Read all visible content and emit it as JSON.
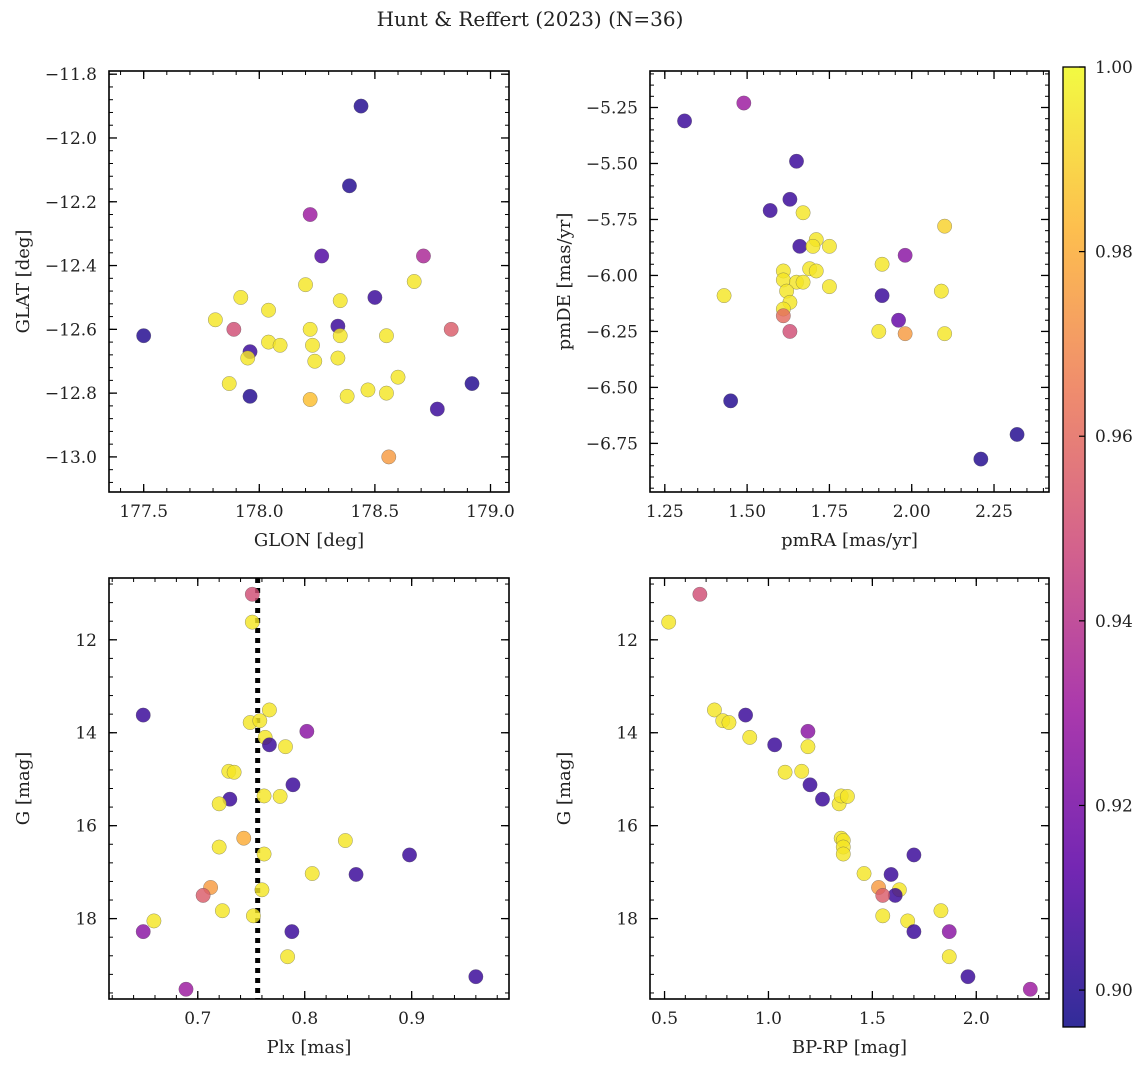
{
  "title": "Hunt & Reffert (2023) (N=36)",
  "colorbar": {
    "range": [
      0.896,
      1.0
    ],
    "ticks": [
      0.9,
      0.92,
      0.94,
      0.96,
      0.98,
      1.0
    ],
    "tick_labels": [
      "0.90",
      "0.92",
      "0.94",
      "0.96",
      "0.98",
      "1.00"
    ],
    "colormap": [
      "#0d0887",
      "#5c01a6",
      "#9c179e",
      "#cc4778",
      "#ed7953",
      "#fdb42f",
      "#f0f921"
    ]
  },
  "chart_data": [
    {
      "type": "scatter",
      "name": "sky-position",
      "xlabel": "GLON [deg]",
      "ylabel": "GLAT [deg]",
      "xlim": [
        177.35,
        179.08
      ],
      "ylim": [
        -13.11,
        -11.79
      ],
      "xticks": [
        177.5,
        178.0,
        178.5,
        179.0
      ],
      "xtick_labels": [
        "177.5",
        "178.0",
        "178.5",
        "179.0"
      ],
      "yticks": [
        -11.8,
        -12.0,
        -12.2,
        -12.4,
        -12.6,
        -12.8,
        -13.0
      ],
      "ytick_labels": [
        "−11.8",
        "−12.0",
        "−12.2",
        "−12.4",
        "−12.6",
        "−12.8",
        "−13.0"
      ],
      "points": [
        {
          "x": 178.44,
          "y": -11.9,
          "c": 0.9
        },
        {
          "x": 178.39,
          "y": -12.15,
          "c": 0.9
        },
        {
          "x": 178.22,
          "y": -12.24,
          "c": 0.93
        },
        {
          "x": 178.27,
          "y": -12.37,
          "c": 0.91
        },
        {
          "x": 178.71,
          "y": -12.37,
          "c": 0.935
        },
        {
          "x": 177.5,
          "y": -12.62,
          "c": 0.9
        },
        {
          "x": 177.92,
          "y": -12.5,
          "c": 0.995
        },
        {
          "x": 178.04,
          "y": -12.54,
          "c": 0.995
        },
        {
          "x": 178.2,
          "y": -12.46,
          "c": 0.995
        },
        {
          "x": 178.35,
          "y": -12.51,
          "c": 0.995
        },
        {
          "x": 178.5,
          "y": -12.5,
          "c": 0.905
        },
        {
          "x": 178.67,
          "y": -12.45,
          "c": 0.995
        },
        {
          "x": 177.81,
          "y": -12.57,
          "c": 0.995
        },
        {
          "x": 177.89,
          "y": -12.6,
          "c": 0.95
        },
        {
          "x": 178.83,
          "y": -12.6,
          "c": 0.955
        },
        {
          "x": 178.22,
          "y": -12.6,
          "c": 0.995
        },
        {
          "x": 178.34,
          "y": -12.59,
          "c": 0.905
        },
        {
          "x": 178.35,
          "y": -12.62,
          "c": 0.995
        },
        {
          "x": 178.55,
          "y": -12.62,
          "c": 0.995
        },
        {
          "x": 177.96,
          "y": -12.67,
          "c": 0.905
        },
        {
          "x": 177.95,
          "y": -12.69,
          "c": 0.995
        },
        {
          "x": 178.04,
          "y": -12.64,
          "c": 0.995
        },
        {
          "x": 178.09,
          "y": -12.65,
          "c": 0.995
        },
        {
          "x": 178.23,
          "y": -12.65,
          "c": 0.995
        },
        {
          "x": 178.24,
          "y": -12.7,
          "c": 0.995
        },
        {
          "x": 178.34,
          "y": -12.69,
          "c": 0.995
        },
        {
          "x": 177.87,
          "y": -12.77,
          "c": 0.995
        },
        {
          "x": 177.96,
          "y": -12.81,
          "c": 0.9
        },
        {
          "x": 178.22,
          "y": -12.82,
          "c": 0.985
        },
        {
          "x": 178.38,
          "y": -12.81,
          "c": 0.995
        },
        {
          "x": 178.47,
          "y": -12.79,
          "c": 0.995
        },
        {
          "x": 178.55,
          "y": -12.8,
          "c": 0.995
        },
        {
          "x": 178.6,
          "y": -12.75,
          "c": 0.995
        },
        {
          "x": 178.77,
          "y": -12.85,
          "c": 0.905
        },
        {
          "x": 178.92,
          "y": -12.77,
          "c": 0.9
        },
        {
          "x": 178.56,
          "y": -13.0,
          "c": 0.975
        }
      ]
    },
    {
      "type": "scatter",
      "name": "proper-motion",
      "xlabel": "pmRA [mas/yr]",
      "ylabel": "pmDE [mas/yr]",
      "xlim": [
        1.205,
        2.417
      ],
      "ylim": [
        -6.967,
        -5.087
      ],
      "xticks": [
        1.25,
        1.5,
        1.75,
        2.0,
        2.25
      ],
      "xtick_labels": [
        "1.25",
        "1.50",
        "1.75",
        "2.00",
        "2.25"
      ],
      "yticks": [
        -5.25,
        -5.5,
        -5.75,
        -6.0,
        -6.25,
        -6.5,
        -6.75
      ],
      "ytick_labels": [
        "−5.25",
        "−5.50",
        "−5.75",
        "−6.00",
        "−6.25",
        "−6.50",
        "−6.75"
      ],
      "points": [
        {
          "x": 1.49,
          "y": -5.23,
          "c": 0.93
        },
        {
          "x": 1.31,
          "y": -5.31,
          "c": 0.905
        },
        {
          "x": 1.65,
          "y": -5.49,
          "c": 0.905
        },
        {
          "x": 1.63,
          "y": -5.66,
          "c": 0.905
        },
        {
          "x": 1.57,
          "y": -5.71,
          "c": 0.905
        },
        {
          "x": 1.67,
          "y": -5.72,
          "c": 0.995
        },
        {
          "x": 1.71,
          "y": -5.84,
          "c": 0.995
        },
        {
          "x": 1.66,
          "y": -5.87,
          "c": 0.905
        },
        {
          "x": 1.7,
          "y": -5.87,
          "c": 0.995
        },
        {
          "x": 1.75,
          "y": -5.87,
          "c": 0.995
        },
        {
          "x": 2.1,
          "y": -5.78,
          "c": 0.99
        },
        {
          "x": 1.98,
          "y": -5.91,
          "c": 0.925
        },
        {
          "x": 1.91,
          "y": -5.95,
          "c": 0.995
        },
        {
          "x": 1.69,
          "y": -5.97,
          "c": 0.995
        },
        {
          "x": 1.71,
          "y": -5.98,
          "c": 0.995
        },
        {
          "x": 1.61,
          "y": -5.98,
          "c": 0.995
        },
        {
          "x": 1.61,
          "y": -6.02,
          "c": 0.995
        },
        {
          "x": 1.65,
          "y": -6.03,
          "c": 0.995
        },
        {
          "x": 1.67,
          "y": -6.03,
          "c": 0.995
        },
        {
          "x": 1.75,
          "y": -6.05,
          "c": 0.995
        },
        {
          "x": 1.62,
          "y": -6.07,
          "c": 0.995
        },
        {
          "x": 1.43,
          "y": -6.09,
          "c": 0.995
        },
        {
          "x": 1.91,
          "y": -6.09,
          "c": 0.905
        },
        {
          "x": 2.09,
          "y": -6.07,
          "c": 0.995
        },
        {
          "x": 1.63,
          "y": -6.12,
          "c": 0.995
        },
        {
          "x": 1.61,
          "y": -6.15,
          "c": 0.995
        },
        {
          "x": 1.61,
          "y": -6.18,
          "c": 0.96
        },
        {
          "x": 1.96,
          "y": -6.2,
          "c": 0.915
        },
        {
          "x": 1.63,
          "y": -6.25,
          "c": 0.95
        },
        {
          "x": 1.9,
          "y": -6.25,
          "c": 0.995
        },
        {
          "x": 1.98,
          "y": -6.26,
          "c": 0.975
        },
        {
          "x": 2.1,
          "y": -6.26,
          "c": 0.995
        },
        {
          "x": 1.45,
          "y": -6.56,
          "c": 0.9
        },
        {
          "x": 2.32,
          "y": -6.71,
          "c": 0.9
        },
        {
          "x": 2.21,
          "y": -6.82,
          "c": 0.9
        }
      ]
    },
    {
      "type": "scatter",
      "name": "parallax-magnitude",
      "xlabel": "Plx [mas]",
      "ylabel": "G [mag]",
      "xlim": [
        0.617,
        0.991
      ],
      "ylim": [
        19.73,
        10.67
      ],
      "xticks": [
        0.7,
        0.8,
        0.9
      ],
      "xtick_labels": [
        "0.7",
        "0.8",
        "0.9"
      ],
      "yticks": [
        12,
        14,
        16,
        18
      ],
      "ytick_labels": [
        "12",
        "14",
        "16",
        "18"
      ],
      "reference_line": {
        "x": 0.756,
        "style": "dotted",
        "color": "#000000"
      },
      "points": [
        {
          "x": 0.751,
          "y": 11.02,
          "c": 0.95
        },
        {
          "x": 0.751,
          "y": 11.62,
          "c": 0.995
        },
        {
          "x": 0.649,
          "y": 13.62,
          "c": 0.905
        },
        {
          "x": 0.749,
          "y": 13.78,
          "c": 0.995
        },
        {
          "x": 0.758,
          "y": 13.74,
          "c": 0.995
        },
        {
          "x": 0.767,
          "y": 13.51,
          "c": 0.995
        },
        {
          "x": 0.802,
          "y": 13.97,
          "c": 0.925
        },
        {
          "x": 0.763,
          "y": 14.1,
          "c": 0.995
        },
        {
          "x": 0.767,
          "y": 14.26,
          "c": 0.905
        },
        {
          "x": 0.782,
          "y": 14.3,
          "c": 0.995
        },
        {
          "x": 0.729,
          "y": 14.83,
          "c": 0.995
        },
        {
          "x": 0.734,
          "y": 14.85,
          "c": 0.995
        },
        {
          "x": 0.789,
          "y": 15.12,
          "c": 0.905
        },
        {
          "x": 0.73,
          "y": 15.43,
          "c": 0.905
        },
        {
          "x": 0.72,
          "y": 15.53,
          "c": 0.995
        },
        {
          "x": 0.762,
          "y": 15.36,
          "c": 0.995
        },
        {
          "x": 0.777,
          "y": 15.37,
          "c": 0.995
        },
        {
          "x": 0.743,
          "y": 16.27,
          "c": 0.98
        },
        {
          "x": 0.838,
          "y": 16.32,
          "c": 0.995
        },
        {
          "x": 0.72,
          "y": 16.46,
          "c": 0.995
        },
        {
          "x": 0.762,
          "y": 16.61,
          "c": 0.995
        },
        {
          "x": 0.898,
          "y": 16.63,
          "c": 0.905
        },
        {
          "x": 0.807,
          "y": 17.03,
          "c": 0.995
        },
        {
          "x": 0.848,
          "y": 17.05,
          "c": 0.905
        },
        {
          "x": 0.712,
          "y": 17.33,
          "c": 0.975
        },
        {
          "x": 0.76,
          "y": 17.38,
          "c": 0.995
        },
        {
          "x": 0.705,
          "y": 17.5,
          "c": 0.955
        },
        {
          "x": 0.723,
          "y": 17.83,
          "c": 0.995
        },
        {
          "x": 0.752,
          "y": 17.94,
          "c": 0.995
        },
        {
          "x": 0.659,
          "y": 18.05,
          "c": 0.995
        },
        {
          "x": 0.649,
          "y": 18.28,
          "c": 0.925
        },
        {
          "x": 0.788,
          "y": 18.28,
          "c": 0.905
        },
        {
          "x": 0.784,
          "y": 18.82,
          "c": 0.995
        },
        {
          "x": 0.96,
          "y": 19.25,
          "c": 0.905
        },
        {
          "x": 0.689,
          "y": 19.52,
          "c": 0.93
        }
      ]
    },
    {
      "type": "scatter",
      "name": "color-magnitude",
      "xlabel": "BP-RP [mag]",
      "ylabel": "G [mag]",
      "xlim": [
        0.43,
        2.35
      ],
      "ylim": [
        19.73,
        10.67
      ],
      "xticks": [
        0.5,
        1.0,
        1.5,
        2.0
      ],
      "xtick_labels": [
        "0.5",
        "1.0",
        "1.5",
        "2.0"
      ],
      "yticks": [
        12,
        14,
        16,
        18
      ],
      "ytick_labels": [
        "12",
        "14",
        "16",
        "18"
      ],
      "points": [
        {
          "x": 0.67,
          "y": 11.02,
          "c": 0.95
        },
        {
          "x": 0.52,
          "y": 11.62,
          "c": 0.995
        },
        {
          "x": 0.74,
          "y": 13.51,
          "c": 0.995
        },
        {
          "x": 0.78,
          "y": 13.74,
          "c": 0.995
        },
        {
          "x": 0.81,
          "y": 13.78,
          "c": 0.995
        },
        {
          "x": 0.89,
          "y": 13.62,
          "c": 0.905
        },
        {
          "x": 0.91,
          "y": 14.1,
          "c": 0.995
        },
        {
          "x": 1.03,
          "y": 14.26,
          "c": 0.905
        },
        {
          "x": 1.19,
          "y": 13.97,
          "c": 0.925
        },
        {
          "x": 1.19,
          "y": 14.3,
          "c": 0.995
        },
        {
          "x": 1.08,
          "y": 14.85,
          "c": 0.995
        },
        {
          "x": 1.16,
          "y": 14.83,
          "c": 0.995
        },
        {
          "x": 1.2,
          "y": 15.12,
          "c": 0.905
        },
        {
          "x": 1.26,
          "y": 15.43,
          "c": 0.905
        },
        {
          "x": 1.34,
          "y": 15.53,
          "c": 0.995
        },
        {
          "x": 1.35,
          "y": 15.36,
          "c": 0.995
        },
        {
          "x": 1.38,
          "y": 15.37,
          "c": 0.995
        },
        {
          "x": 1.35,
          "y": 16.27,
          "c": 0.995
        },
        {
          "x": 1.36,
          "y": 16.32,
          "c": 0.995
        },
        {
          "x": 1.36,
          "y": 16.46,
          "c": 0.995
        },
        {
          "x": 1.36,
          "y": 16.61,
          "c": 0.995
        },
        {
          "x": 1.7,
          "y": 16.63,
          "c": 0.905
        },
        {
          "x": 1.46,
          "y": 17.03,
          "c": 0.995
        },
        {
          "x": 1.59,
          "y": 17.05,
          "c": 0.905
        },
        {
          "x": 1.53,
          "y": 17.33,
          "c": 0.975
        },
        {
          "x": 1.63,
          "y": 17.38,
          "c": 0.995
        },
        {
          "x": 1.61,
          "y": 17.5,
          "c": 0.905
        },
        {
          "x": 1.55,
          "y": 17.5,
          "c": 0.955
        },
        {
          "x": 1.83,
          "y": 17.83,
          "c": 0.995
        },
        {
          "x": 1.55,
          "y": 17.94,
          "c": 0.995
        },
        {
          "x": 1.67,
          "y": 18.05,
          "c": 0.995
        },
        {
          "x": 1.7,
          "y": 18.28,
          "c": 0.905
        },
        {
          "x": 1.87,
          "y": 18.28,
          "c": 0.925
        },
        {
          "x": 1.87,
          "y": 18.82,
          "c": 0.995
        },
        {
          "x": 1.96,
          "y": 19.25,
          "c": 0.905
        },
        {
          "x": 2.26,
          "y": 19.52,
          "c": 0.93
        }
      ]
    }
  ]
}
